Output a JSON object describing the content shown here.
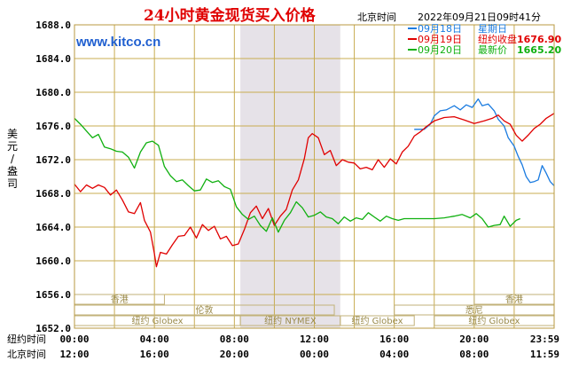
{
  "colors": {
    "plot_border": "#b89a40",
    "grid": "#c8ac50",
    "band": "#e6e2e8",
    "market_box": "#c2b27a",
    "title": "#e00000",
    "url": "#1f5fd0"
  },
  "chart_data": {
    "type": "line",
    "title": "24小时黄金现货买入价格",
    "header_label": "北京时间",
    "header_time": "2022年09月21日09时41分",
    "website": "www.kitco.cn",
    "ylabel": "美元/盎司",
    "ylim": [
      1652,
      1688
    ],
    "y_ticks": [
      "1688.0",
      "1684.0",
      "1680.0",
      "1676.0",
      "1672.0",
      "1668.0",
      "1664.0",
      "1660.0",
      "1656.0",
      "1652.0"
    ],
    "y_tick_values": [
      1688,
      1684,
      1680,
      1676,
      1672,
      1668,
      1664,
      1660,
      1656,
      1652
    ],
    "xlim": [
      0,
      24
    ],
    "x_tick_positions": [
      0,
      4,
      8,
      12,
      16,
      20,
      24
    ],
    "x_rows": [
      {
        "label": "纽约时间",
        "ticks": [
          "00:00",
          "04:00",
          "08:00",
          "12:00",
          "16:00",
          "20:00",
          "23:59"
        ]
      },
      {
        "label": "北京时间",
        "ticks": [
          "12:00",
          "16:00",
          "20:00",
          "00:00",
          "04:00",
          "08:00",
          "11:59"
        ]
      }
    ],
    "shaded_range": [
      8.3,
      13.3
    ],
    "markets": [
      {
        "name": "香港",
        "row": 0,
        "start": 0,
        "end": 4.5
      },
      {
        "name": "香港",
        "row": 0,
        "start": 20.0,
        "end": 24
      },
      {
        "name": "伦敦",
        "row": 1,
        "start": 0,
        "end": 13.0
      },
      {
        "name": "悉尼",
        "row": 1,
        "start": 16.0,
        "end": 24
      },
      {
        "name": "纽约 Globex",
        "row": 2,
        "start": 0,
        "end": 8.3
      },
      {
        "name": "纽约 NYMEX",
        "row": 2,
        "start": 8.3,
        "end": 13.3
      },
      {
        "name": "纽约 Globex",
        "row": 2,
        "start": 13.3,
        "end": 17.0
      },
      {
        "name": "纽约 Globex",
        "row": 2,
        "start": 18.0,
        "end": 24
      }
    ],
    "series": [
      {
        "name": "09月18日",
        "info_label": "星期日",
        "info_value": "",
        "color": "#1a7be0",
        "points": [
          [
            17.0,
            1675.6
          ],
          [
            17.5,
            1675.6
          ],
          [
            17.8,
            1676.2
          ],
          [
            18.0,
            1677.2
          ],
          [
            18.3,
            1677.8
          ],
          [
            18.6,
            1677.9
          ],
          [
            19.0,
            1678.4
          ],
          [
            19.3,
            1677.9
          ],
          [
            19.6,
            1678.5
          ],
          [
            19.9,
            1678.2
          ],
          [
            20.2,
            1679.2
          ],
          [
            20.4,
            1678.4
          ],
          [
            20.7,
            1678.6
          ],
          [
            21.0,
            1677.8
          ],
          [
            21.2,
            1676.8
          ],
          [
            21.5,
            1676.0
          ],
          [
            21.7,
            1674.6
          ],
          [
            22.0,
            1673.6
          ],
          [
            22.2,
            1672.4
          ],
          [
            22.4,
            1671.4
          ],
          [
            22.6,
            1670.0
          ],
          [
            22.8,
            1669.3
          ],
          [
            23.0,
            1669.4
          ],
          [
            23.2,
            1669.6
          ],
          [
            23.4,
            1671.3
          ],
          [
            23.6,
            1670.4
          ],
          [
            23.8,
            1669.4
          ],
          [
            24.0,
            1668.9
          ]
        ]
      },
      {
        "name": "09月19日",
        "info_label": "纽约收盘",
        "info_value": "1676.90",
        "color": "#e00000",
        "points": [
          [
            0.0,
            1669.1
          ],
          [
            0.3,
            1668.2
          ],
          [
            0.6,
            1669.0
          ],
          [
            0.9,
            1668.6
          ],
          [
            1.2,
            1669.0
          ],
          [
            1.5,
            1668.7
          ],
          [
            1.8,
            1667.8
          ],
          [
            2.1,
            1668.4
          ],
          [
            2.4,
            1667.2
          ],
          [
            2.7,
            1665.8
          ],
          [
            3.0,
            1665.6
          ],
          [
            3.3,
            1666.9
          ],
          [
            3.5,
            1664.8
          ],
          [
            3.8,
            1663.4
          ],
          [
            4.0,
            1660.8
          ],
          [
            4.1,
            1659.3
          ],
          [
            4.3,
            1661.0
          ],
          [
            4.6,
            1660.8
          ],
          [
            4.9,
            1661.9
          ],
          [
            5.2,
            1662.9
          ],
          [
            5.5,
            1663.0
          ],
          [
            5.8,
            1664.0
          ],
          [
            6.1,
            1662.7
          ],
          [
            6.4,
            1664.3
          ],
          [
            6.7,
            1663.6
          ],
          [
            7.0,
            1664.1
          ],
          [
            7.3,
            1662.6
          ],
          [
            7.6,
            1662.9
          ],
          [
            7.9,
            1661.8
          ],
          [
            8.2,
            1662.0
          ],
          [
            8.5,
            1663.7
          ],
          [
            8.8,
            1665.7
          ],
          [
            9.1,
            1666.5
          ],
          [
            9.4,
            1665.0
          ],
          [
            9.7,
            1666.2
          ],
          [
            10.0,
            1664.2
          ],
          [
            10.3,
            1665.3
          ],
          [
            10.6,
            1666.1
          ],
          [
            10.9,
            1668.4
          ],
          [
            11.2,
            1669.6
          ],
          [
            11.5,
            1672.1
          ],
          [
            11.7,
            1674.6
          ],
          [
            11.9,
            1675.1
          ],
          [
            12.2,
            1674.6
          ],
          [
            12.5,
            1672.6
          ],
          [
            12.8,
            1673.1
          ],
          [
            13.1,
            1671.3
          ],
          [
            13.4,
            1672.0
          ],
          [
            13.7,
            1671.7
          ],
          [
            14.0,
            1671.6
          ],
          [
            14.3,
            1670.9
          ],
          [
            14.6,
            1671.1
          ],
          [
            14.9,
            1670.8
          ],
          [
            15.2,
            1672.0
          ],
          [
            15.5,
            1671.1
          ],
          [
            15.8,
            1672.1
          ],
          [
            16.1,
            1671.5
          ],
          [
            16.4,
            1672.9
          ],
          [
            16.7,
            1673.6
          ],
          [
            17.0,
            1674.8
          ],
          [
            17.3,
            1675.3
          ],
          [
            17.6,
            1675.9
          ],
          [
            18.0,
            1676.6
          ],
          [
            18.5,
            1677.0
          ],
          [
            19.0,
            1677.1
          ],
          [
            19.5,
            1676.7
          ],
          [
            20.0,
            1676.3
          ],
          [
            20.5,
            1676.6
          ],
          [
            20.9,
            1676.9
          ],
          [
            21.2,
            1677.3
          ],
          [
            21.5,
            1676.6
          ],
          [
            21.8,
            1676.2
          ],
          [
            22.1,
            1674.9
          ],
          [
            22.4,
            1674.2
          ],
          [
            22.7,
            1674.9
          ],
          [
            23.0,
            1675.7
          ],
          [
            23.3,
            1676.2
          ],
          [
            23.6,
            1676.9
          ],
          [
            24.0,
            1677.5
          ]
        ]
      },
      {
        "name": "09月20日",
        "info_label": "最新价",
        "info_value": "1665.20",
        "color": "#10b010",
        "points": [
          [
            0.0,
            1676.9
          ],
          [
            0.3,
            1676.2
          ],
          [
            0.6,
            1675.4
          ],
          [
            0.9,
            1674.6
          ],
          [
            1.2,
            1675.0
          ],
          [
            1.5,
            1673.5
          ],
          [
            1.8,
            1673.3
          ],
          [
            2.1,
            1673.0
          ],
          [
            2.4,
            1672.9
          ],
          [
            2.7,
            1672.3
          ],
          [
            3.0,
            1671.0
          ],
          [
            3.3,
            1672.9
          ],
          [
            3.6,
            1674.0
          ],
          [
            3.9,
            1674.2
          ],
          [
            4.2,
            1673.7
          ],
          [
            4.5,
            1671.2
          ],
          [
            4.8,
            1670.1
          ],
          [
            5.1,
            1669.4
          ],
          [
            5.4,
            1669.6
          ],
          [
            5.7,
            1668.9
          ],
          [
            6.0,
            1668.3
          ],
          [
            6.3,
            1668.4
          ],
          [
            6.6,
            1669.7
          ],
          [
            6.9,
            1669.3
          ],
          [
            7.2,
            1669.5
          ],
          [
            7.5,
            1668.8
          ],
          [
            7.8,
            1668.5
          ],
          [
            8.1,
            1666.4
          ],
          [
            8.4,
            1665.5
          ],
          [
            8.7,
            1664.9
          ],
          [
            9.0,
            1665.3
          ],
          [
            9.3,
            1664.2
          ],
          [
            9.6,
            1663.5
          ],
          [
            9.9,
            1665.1
          ],
          [
            10.2,
            1663.4
          ],
          [
            10.5,
            1664.8
          ],
          [
            10.8,
            1665.7
          ],
          [
            11.1,
            1667.0
          ],
          [
            11.4,
            1666.3
          ],
          [
            11.7,
            1665.2
          ],
          [
            12.0,
            1665.4
          ],
          [
            12.3,
            1665.8
          ],
          [
            12.6,
            1665.2
          ],
          [
            12.9,
            1665.0
          ],
          [
            13.2,
            1664.4
          ],
          [
            13.5,
            1665.2
          ],
          [
            13.8,
            1664.7
          ],
          [
            14.1,
            1665.1
          ],
          [
            14.4,
            1664.9
          ],
          [
            14.7,
            1665.7
          ],
          [
            15.0,
            1665.2
          ],
          [
            15.3,
            1664.7
          ],
          [
            15.6,
            1665.3
          ],
          [
            15.9,
            1665.0
          ],
          [
            16.2,
            1664.8
          ],
          [
            16.5,
            1665.0
          ],
          [
            17.0,
            1665.0
          ],
          [
            17.5,
            1665.0
          ],
          [
            18.0,
            1665.0
          ],
          [
            18.5,
            1665.1
          ],
          [
            19.0,
            1665.3
          ],
          [
            19.4,
            1665.5
          ],
          [
            19.8,
            1665.1
          ],
          [
            20.1,
            1665.6
          ],
          [
            20.4,
            1665.0
          ],
          [
            20.7,
            1664.0
          ],
          [
            21.0,
            1664.2
          ],
          [
            21.3,
            1664.3
          ],
          [
            21.5,
            1665.3
          ],
          [
            21.8,
            1664.1
          ],
          [
            22.1,
            1664.8
          ],
          [
            22.3,
            1665.0
          ]
        ]
      }
    ]
  }
}
